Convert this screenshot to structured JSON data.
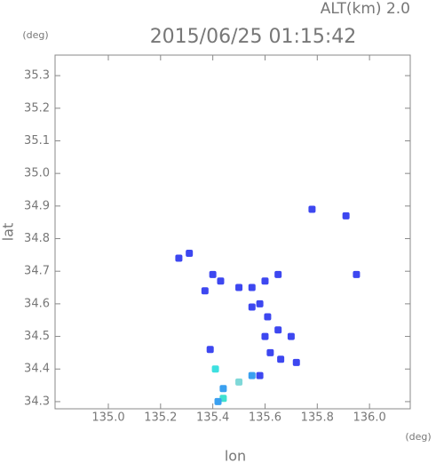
{
  "chart_data": {
    "type": "scatter",
    "title": "2015/06/25 01:15:42",
    "subtitle": "ALT(km) 2.0",
    "x_label": "lon",
    "y_label": "lat",
    "x_unit": "(deg)",
    "y_unit": "(deg)",
    "xlim": [
      134.796,
      136.156
    ],
    "ylim": [
      34.278,
      35.363
    ],
    "xticks": [
      {
        "value": 135,
        "label": "135.0"
      },
      135.2,
      135.4,
      135.6,
      135.8,
      {
        "value": 136,
        "label": "136.0"
      }
    ],
    "yticks": [
      34.3,
      34.4,
      34.5,
      34.6,
      34.7,
      34.8,
      34.9,
      {
        "value": 35,
        "label": "35.0"
      },
      35.1,
      35.2,
      35.3
    ],
    "x": [
      135.27,
      135.31,
      135.4,
      135.37,
      135.43,
      135.5,
      135.55,
      135.6,
      135.65,
      135.58,
      135.61,
      135.55,
      135.6,
      135.65,
      135.7,
      135.62,
      135.66,
      135.72,
      135.39,
      135.41,
      135.55,
      135.58,
      135.5,
      135.44,
      135.44,
      135.42,
      135.78,
      135.91,
      135.95
    ],
    "values": [
      34.74,
      34.755,
      34.69,
      34.64,
      34.67,
      34.65,
      34.65,
      34.67,
      34.69,
      34.6,
      34.56,
      34.59,
      34.5,
      34.52,
      34.5,
      34.45,
      34.43,
      34.42,
      34.46,
      34.4,
      34.38,
      34.38,
      34.36,
      34.34,
      34.31,
      34.3,
      34.89,
      34.87,
      34.69
    ],
    "colors": [
      "#3d47f0",
      "#3d47f0",
      "#3d47f0",
      "#3d47f0",
      "#3d47f0",
      "#3d47f0",
      "#3d47f0",
      "#3d47f0",
      "#3d47f0",
      "#3d47f0",
      "#3d47f0",
      "#3d47f0",
      "#3d47f0",
      "#3d47f0",
      "#3d47f0",
      "#3d47f0",
      "#3d47f0",
      "#3d47f0",
      "#3d47f0",
      "#3de0e0",
      "#3aa0f0",
      "#3d47f0",
      "#7fd8d8",
      "#3aa0f0",
      "#40e0d0",
      "#3aa0f0",
      "#3d47f0",
      "#3d47f0",
      "#3d47f0"
    ]
  }
}
